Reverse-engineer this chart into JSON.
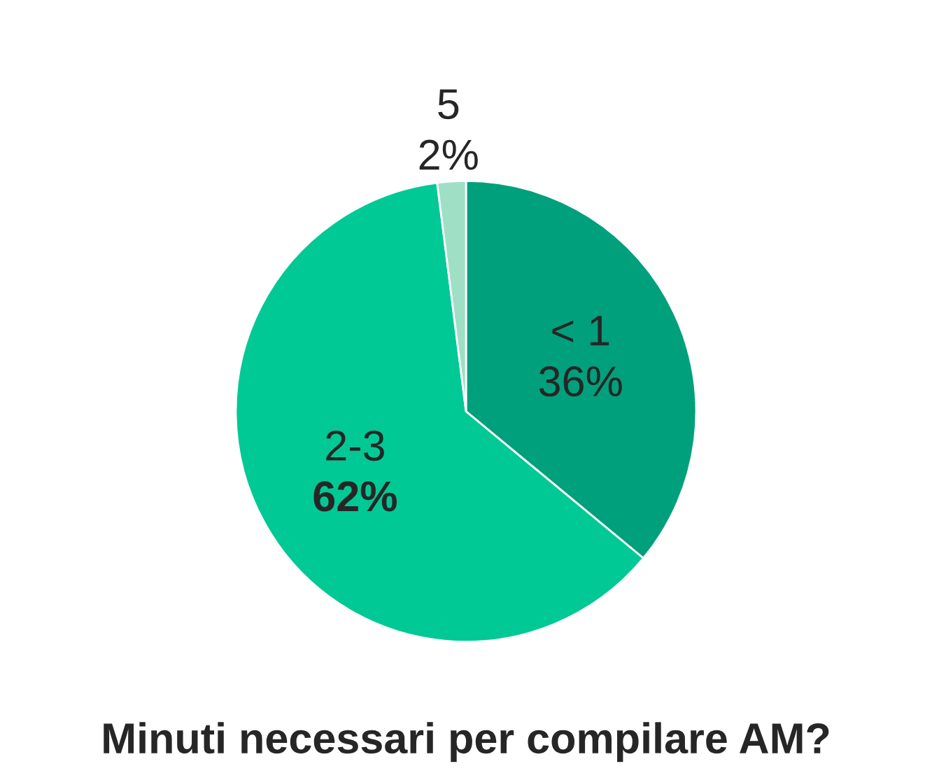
{
  "chart_data": {
    "type": "pie",
    "title": "Minuti necessari per compilare AM?",
    "categories": [
      "< 1",
      "2-3",
      "5"
    ],
    "values": [
      36,
      62,
      2
    ],
    "value_labels": [
      "36%",
      "62%",
      "2%"
    ],
    "colors": [
      "#00a07c",
      "#00c995",
      "#9fdfc6"
    ]
  }
}
